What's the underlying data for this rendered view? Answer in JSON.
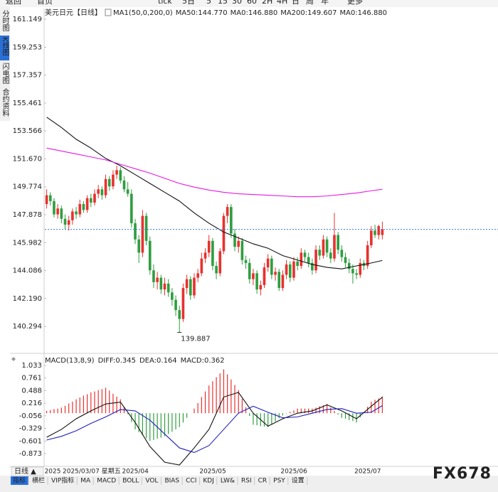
{
  "toolbar": {
    "items": [
      "返回",
      "首页",
      "tick",
      "5日",
      "5",
      "15",
      "30",
      "60",
      "2H",
      "4H",
      "日",
      "周",
      "年",
      "更多"
    ]
  },
  "sidebar": {
    "items": [
      "分时图",
      "K线图",
      "闪电图",
      "合约资料"
    ],
    "active": 1
  },
  "chart_data": [
    {
      "type": "candlestick",
      "title": "美元日元",
      "subtitle": "【日线】",
      "legend_label": "MA1(50,0,200,0)",
      "up_color": "#e8312f",
      "down_color": "#2f9e3f",
      "categories": [
        "2025",
        null,
        null,
        null,
        null,
        null,
        null,
        null,
        null,
        null,
        null,
        null,
        null,
        null,
        null,
        null,
        null,
        null,
        null,
        null,
        null,
        "2025/04",
        null,
        null,
        null,
        null,
        null,
        null,
        null,
        null,
        null,
        null,
        null,
        null,
        null,
        null,
        null,
        null,
        null,
        null,
        null,
        null,
        "2025/05",
        null,
        null,
        null,
        null,
        null,
        null,
        null,
        null,
        null,
        null,
        null,
        null,
        null,
        null,
        null,
        null,
        null,
        null,
        null,
        null,
        null,
        "2025/06",
        null,
        null,
        null,
        null,
        null,
        null,
        null,
        null,
        null,
        null,
        null,
        null,
        null,
        null,
        null,
        null,
        null,
        null,
        null,
        "2025/07",
        null,
        null,
        null,
        null,
        null,
        null,
        null
      ],
      "open": [
        148.6,
        149.2,
        148.8,
        147.9,
        148.3,
        147.6,
        147.2,
        147.5,
        148.1,
        147.9,
        148.6,
        148.2,
        149.0,
        148.7,
        149.3,
        149.6,
        149.2,
        150.3,
        149.8,
        150.6,
        150.9,
        150.2,
        149.6,
        149.3,
        147.3,
        146.2,
        145.3,
        147.8,
        146.1,
        144.1,
        143.3,
        143.6,
        142.8,
        143.2,
        142.6,
        142.1,
        141.4,
        140.8,
        142.9,
        143.5,
        142.4,
        143.6,
        143.9,
        144.9,
        145.3,
        146.1,
        144.4,
        143.9,
        145.4,
        147.8,
        148.4,
        146.6,
        145.7,
        146.1,
        144.8,
        144.6,
        143.5,
        143.9,
        142.8,
        143.1,
        144.3,
        144.9,
        143.8,
        144.0,
        142.9,
        143.8,
        144.5,
        143.6,
        144.7,
        144.4,
        145.3,
        145.0,
        144.6,
        144.1,
        145.5,
        145.1,
        146.2,
        145.3,
        144.9,
        146.5,
        145.5,
        145.0,
        144.6,
        144.2,
        143.9,
        143.8,
        144.6,
        144.4,
        145.8,
        146.8,
        146.5,
        146.5
      ],
      "high": [
        149.6,
        149.4,
        149.0,
        148.6,
        148.5,
        147.9,
        147.8,
        148.3,
        148.4,
        148.9,
        148.8,
        149.2,
        149.3,
        149.6,
        149.9,
        149.8,
        150.6,
        150.5,
        150.9,
        151.2,
        151.1,
        150.5,
        150.1,
        149.6,
        147.6,
        146.5,
        148.2,
        148.0,
        146.4,
        144.5,
        144.0,
        143.8,
        143.6,
        143.5,
        142.9,
        142.4,
        141.7,
        143.2,
        143.8,
        143.7,
        143.9,
        144.2,
        145.3,
        145.6,
        146.5,
        146.3,
        144.7,
        145.6,
        148.0,
        148.6,
        148.6,
        146.9,
        146.4,
        146.3,
        145.1,
        144.9,
        144.2,
        144.1,
        143.4,
        144.6,
        145.2,
        145.1,
        144.3,
        144.2,
        144.1,
        144.8,
        144.7,
        145.0,
        145.0,
        145.6,
        145.5,
        145.3,
        144.9,
        145.8,
        145.8,
        146.5,
        146.4,
        145.6,
        148.0,
        146.7,
        145.8,
        145.3,
        144.9,
        144.5,
        144.2,
        144.9,
        144.8,
        146.1,
        147.1,
        147.2,
        147.2,
        147.4
      ],
      "low": [
        148.3,
        148.5,
        147.7,
        147.6,
        147.3,
        146.9,
        146.8,
        147.2,
        147.6,
        147.7,
        148.0,
        148.0,
        148.4,
        148.5,
        149.0,
        148.9,
        149.0,
        149.5,
        149.6,
        150.3,
        150.0,
        149.4,
        149.1,
        147.0,
        145.9,
        144.6,
        145.0,
        145.8,
        143.8,
        142.9,
        142.8,
        142.5,
        142.4,
        142.3,
        141.7,
        141.0,
        139.887,
        140.6,
        142.5,
        142.1,
        142.2,
        143.3,
        143.7,
        144.6,
        145.0,
        144.1,
        143.5,
        143.7,
        145.2,
        147.3,
        146.3,
        145.4,
        145.3,
        144.5,
        144.2,
        143.2,
        143.1,
        142.5,
        142.4,
        142.9,
        144.0,
        143.5,
        143.4,
        142.7,
        142.7,
        143.5,
        143.3,
        143.4,
        144.1,
        144.2,
        144.7,
        144.3,
        143.8,
        143.9,
        144.8,
        144.9,
        145.0,
        144.6,
        144.7,
        145.2,
        144.7,
        144.3,
        143.9,
        143.2,
        143.5,
        143.6,
        144.1,
        144.2,
        145.6,
        146.3,
        146.2,
        146.2
      ],
      "close": [
        149.2,
        148.8,
        147.9,
        148.3,
        147.6,
        147.2,
        147.5,
        148.1,
        147.9,
        148.6,
        148.2,
        149.0,
        148.7,
        149.3,
        149.6,
        149.2,
        150.3,
        149.8,
        150.6,
        150.9,
        150.2,
        149.6,
        149.3,
        147.3,
        146.2,
        145.3,
        147.8,
        146.1,
        144.1,
        143.3,
        143.6,
        142.8,
        143.2,
        142.6,
        142.1,
        141.4,
        140.8,
        142.9,
        143.5,
        142.4,
        143.6,
        143.9,
        144.9,
        145.3,
        146.1,
        144.4,
        143.9,
        145.4,
        147.8,
        148.4,
        146.6,
        145.7,
        146.1,
        144.8,
        144.6,
        143.5,
        143.9,
        142.8,
        143.1,
        144.3,
        144.9,
        143.8,
        144.0,
        142.9,
        143.8,
        144.5,
        143.6,
        144.7,
        144.4,
        145.3,
        145.0,
        144.6,
        144.1,
        145.5,
        145.1,
        146.2,
        145.3,
        144.9,
        146.5,
        145.5,
        145.0,
        144.6,
        144.2,
        143.9,
        143.8,
        144.6,
        144.4,
        145.8,
        146.8,
        146.5,
        147.1,
        146.88
      ],
      "series": [
        {
          "name": "MA50:144.770",
          "color": "#111111",
          "x": [
            0,
            4,
            8,
            12,
            16,
            20,
            24,
            28,
            32,
            36,
            40,
            44,
            48,
            52,
            56,
            60,
            64,
            68,
            72,
            76,
            80,
            84,
            88,
            91
          ],
          "values": [
            154.5,
            153.8,
            153.0,
            152.4,
            151.7,
            151.2,
            150.6,
            150.0,
            149.4,
            148.8,
            148.0,
            147.3,
            146.7,
            146.3,
            145.9,
            145.6,
            145.1,
            144.8,
            144.5,
            144.3,
            144.2,
            144.4,
            144.6,
            144.77
          ]
        },
        {
          "name": "MA200:149.607",
          "color": "#e619e6",
          "x": [
            0,
            4,
            8,
            12,
            16,
            20,
            24,
            28,
            32,
            36,
            40,
            44,
            48,
            52,
            56,
            60,
            64,
            68,
            72,
            76,
            80,
            84,
            88,
            91
          ],
          "values": [
            152.4,
            152.2,
            152.0,
            151.8,
            151.6,
            151.3,
            151.0,
            150.7,
            150.35,
            150.0,
            149.75,
            149.55,
            149.4,
            149.3,
            149.25,
            149.2,
            149.15,
            149.1,
            149.1,
            149.15,
            149.25,
            149.35,
            149.5,
            149.607
          ]
        }
      ],
      "legend_extra": [
        {
          "text": "MA0:146.880",
          "color": "#2040ff"
        },
        {
          "text": "MA0:146.880",
          "color": "#ff8c1a"
        }
      ],
      "last_line_color": "#3a7bd5",
      "ylim": [
        138.56,
        161.49
      ],
      "yticks": [
        161.149,
        159.253,
        157.357,
        155.461,
        153.566,
        {
          "value": 151.67,
          "label": "151.670"
        },
        149.774,
        147.878,
        145.982,
        144.086,
        {
          "value": 142.19,
          "label": "142.190"
        },
        140.294
      ]
    },
    {
      "type": "macd",
      "legend_label": "MACD(13,8,9)",
      "series": [
        {
          "name": "DIFF:0.345",
          "color": "#111111",
          "x": [
            0,
            4,
            8,
            12,
            16,
            20,
            24,
            28,
            32,
            36,
            40,
            44,
            48,
            52,
            56,
            60,
            64,
            68,
            72,
            76,
            80,
            84,
            88,
            91
          ],
          "values": [
            -0.52,
            -0.35,
            -0.12,
            0.05,
            0.2,
            0.24,
            -0.2,
            -0.72,
            -1.06,
            -1.12,
            -0.75,
            -0.35,
            0.35,
            0.45,
            0.0,
            -0.28,
            -0.12,
            0.0,
            0.05,
            0.18,
            0.05,
            -0.12,
            0.15,
            0.345
          ]
        },
        {
          "name": "DEA:0.164",
          "color": "#2020c0",
          "x": [
            0,
            4,
            8,
            12,
            16,
            20,
            24,
            28,
            32,
            36,
            40,
            44,
            48,
            52,
            56,
            60,
            64,
            68,
            72,
            76,
            80,
            84,
            88,
            91
          ],
          "values": [
            -0.58,
            -0.5,
            -0.38,
            -0.22,
            -0.08,
            0.08,
            0.05,
            -0.15,
            -0.45,
            -0.75,
            -0.85,
            -0.7,
            -0.35,
            0.0,
            0.15,
            0.02,
            -0.1,
            -0.08,
            0.0,
            0.08,
            0.1,
            0.0,
            0.02,
            0.164
          ]
        }
      ],
      "histogram": {
        "name": "MACD:0.362",
        "color": "#e61ee6",
        "up_color": "#e8312f",
        "down_color": "#2f9e3f",
        "values": [
          0.05,
          0.07,
          0.09,
          0.1,
          0.12,
          0.16,
          0.21,
          0.25,
          0.3,
          0.34,
          0.38,
          0.41,
          0.45,
          0.47,
          0.5,
          0.52,
          0.55,
          0.49,
          0.42,
          0.36,
          0.3,
          0.14,
          -0.02,
          -0.19,
          -0.35,
          -0.41,
          -0.48,
          -0.54,
          -0.6,
          -0.58,
          -0.55,
          -0.53,
          -0.5,
          -0.45,
          -0.4,
          -0.35,
          -0.3,
          -0.2,
          -0.1,
          0.0,
          0.1,
          0.22,
          0.35,
          0.47,
          0.6,
          0.69,
          0.78,
          0.86,
          0.95,
          0.84,
          0.73,
          0.61,
          0.5,
          0.31,
          0.13,
          -0.06,
          -0.25,
          -0.26,
          -0.28,
          -0.29,
          -0.3,
          -0.24,
          -0.18,
          -0.11,
          -0.05,
          -0.01,
          0.03,
          0.06,
          0.1,
          0.1,
          0.1,
          0.1,
          0.1,
          0.12,
          0.15,
          0.17,
          0.2,
          0.12,
          0.05,
          -0.03,
          -0.1,
          -0.12,
          -0.15,
          -0.17,
          -0.2,
          -0.09,
          0.02,
          0.14,
          0.25,
          0.29,
          0.32,
          0.362
        ]
      },
      "ylim": [
        -1.135,
        1.171
      ],
      "yticks": [
        1.033,
        0.761,
        0.488,
        0.216,
        -0.056,
        -0.329,
        -0.601,
        -0.873
      ]
    }
  ],
  "period_label": "日线 ▲",
  "cursor_date": "2025/03/07 星期五",
  "indicator_tabs": {
    "items": [
      "指标",
      "横栏",
      "VIP指标",
      "MA",
      "MACD",
      "BOLL",
      "VOL",
      "BIAS",
      "CCI",
      "KDJ",
      "LW&",
      "RSI",
      "CR",
      "PSY",
      "设置"
    ],
    "active": 0
  },
  "watermark": "FX678"
}
